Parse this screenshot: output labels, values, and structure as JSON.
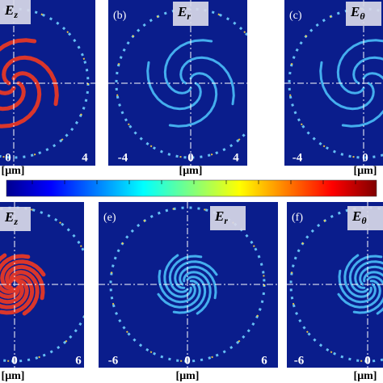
{
  "top_row": {
    "panels": [
      {
        "field": {
          "symbol": "E",
          "sub": "z"
        },
        "ticks": [
          "0",
          "4"
        ]
      },
      {
        "label": "(b)",
        "field": {
          "symbol": "E",
          "sub": "r"
        },
        "ticks": [
          "-4",
          "0",
          "4"
        ]
      },
      {
        "label": "(c)",
        "field": {
          "symbol": "E",
          "sub": "θ"
        },
        "ticks": [
          "-4",
          "0"
        ]
      }
    ],
    "axis_labels": [
      "[μm]",
      "[μm]",
      "[μm]"
    ]
  },
  "bottom_row": {
    "panels": [
      {
        "field": {
          "symbol": "E",
          "sub": "z"
        },
        "ticks": [
          "0",
          "6"
        ]
      },
      {
        "label": "(e)",
        "field": {
          "symbol": "E",
          "sub": "r"
        },
        "ticks": [
          "-6",
          "0",
          "6"
        ]
      },
      {
        "label": "(f)",
        "field": {
          "symbol": "E",
          "sub": "θ"
        },
        "ticks": [
          "-6",
          "0"
        ]
      }
    ],
    "axis_labels": [
      "[μm]",
      "[μm]",
      "[μm]"
    ]
  }
}
